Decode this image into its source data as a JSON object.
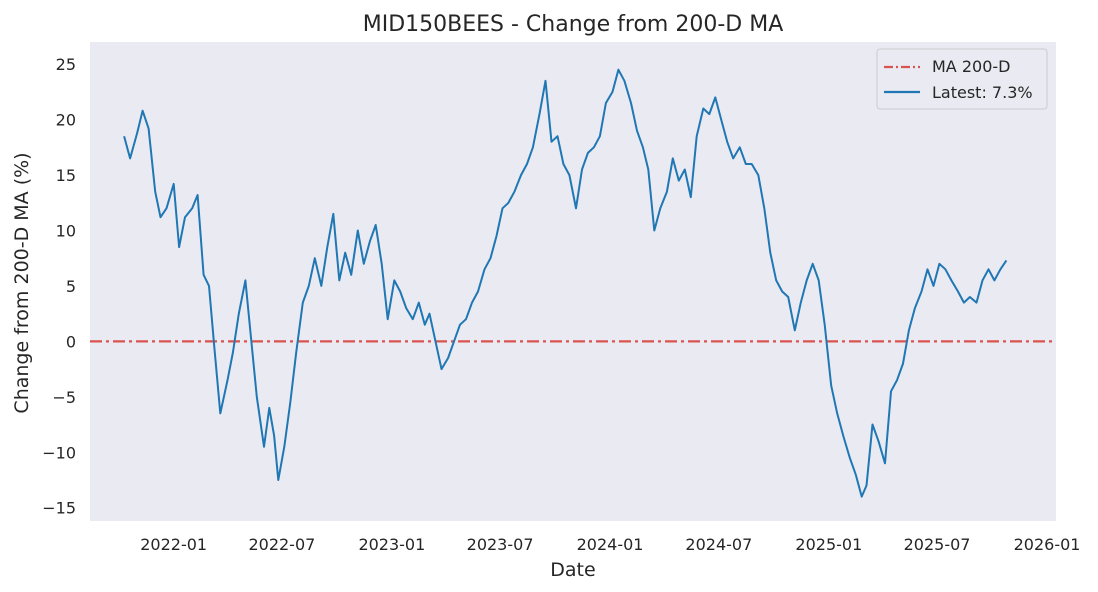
{
  "chart_data": {
    "type": "line",
    "title": "MID150BEES - Change from 200-D MA",
    "xlabel": "Date",
    "ylabel": "Change from 200-D MA (%)",
    "xlim": [
      "2021-08-14",
      "2026-01-16"
    ],
    "ylim": [
      -16.2,
      27.0
    ],
    "grid": false,
    "legend_position": "top-right",
    "x_ticks": [
      "2022-01",
      "2022-07",
      "2023-01",
      "2023-07",
      "2024-01",
      "2024-07",
      "2025-01",
      "2025-07",
      "2026-01"
    ],
    "y_ticks": [
      25,
      20,
      15,
      10,
      5,
      0,
      -5,
      -10,
      -15
    ],
    "reference_line": {
      "name": "MA 200-D",
      "y": 0,
      "color": "#d9534f",
      "style": "dashdot"
    },
    "series": [
      {
        "name": "Latest: 7.3%",
        "color": "#1f77b4",
        "x": [
          "2021-10-10",
          "2021-10-20",
          "2021-11-01",
          "2021-11-10",
          "2021-11-20",
          "2021-12-01",
          "2021-12-10",
          "2021-12-20",
          "2022-01-01",
          "2022-01-10",
          "2022-01-20",
          "2022-02-01",
          "2022-02-10",
          "2022-02-20",
          "2022-03-01",
          "2022-03-10",
          "2022-03-20",
          "2022-04-01",
          "2022-04-10",
          "2022-04-20",
          "2022-05-01",
          "2022-05-10",
          "2022-05-20",
          "2022-06-01",
          "2022-06-10",
          "2022-06-18",
          "2022-06-25",
          "2022-07-05",
          "2022-07-15",
          "2022-07-25",
          "2022-08-05",
          "2022-08-15",
          "2022-08-25",
          "2022-09-05",
          "2022-09-15",
          "2022-09-25",
          "2022-10-05",
          "2022-10-15",
          "2022-10-25",
          "2022-11-05",
          "2022-11-15",
          "2022-11-25",
          "2022-12-05",
          "2022-12-15",
          "2022-12-25",
          "2023-01-05",
          "2023-01-15",
          "2023-01-25",
          "2023-02-05",
          "2023-02-15",
          "2023-02-25",
          "2023-03-05",
          "2023-03-15",
          "2023-03-25",
          "2023-04-05",
          "2023-04-15",
          "2023-04-25",
          "2023-05-05",
          "2023-05-15",
          "2023-05-25",
          "2023-06-05",
          "2023-06-15",
          "2023-06-25",
          "2023-07-05",
          "2023-07-15",
          "2023-07-25",
          "2023-08-05",
          "2023-08-15",
          "2023-08-25",
          "2023-09-05",
          "2023-09-15",
          "2023-09-25",
          "2023-10-05",
          "2023-10-15",
          "2023-10-25",
          "2023-11-05",
          "2023-11-15",
          "2023-11-25",
          "2023-12-05",
          "2023-12-15",
          "2023-12-25",
          "2024-01-05",
          "2024-01-15",
          "2024-01-25",
          "2024-02-05",
          "2024-02-15",
          "2024-02-25",
          "2024-03-05",
          "2024-03-15",
          "2024-03-25",
          "2024-04-05",
          "2024-04-15",
          "2024-04-25",
          "2024-05-05",
          "2024-05-15",
          "2024-05-25",
          "2024-06-05",
          "2024-06-15",
          "2024-06-25",
          "2024-07-05",
          "2024-07-15",
          "2024-07-25",
          "2024-08-05",
          "2024-08-15",
          "2024-08-25",
          "2024-09-05",
          "2024-09-15",
          "2024-09-25",
          "2024-10-05",
          "2024-10-15",
          "2024-10-25",
          "2024-11-05",
          "2024-11-15",
          "2024-11-25",
          "2024-12-05",
          "2024-12-15",
          "2024-12-25",
          "2025-01-05",
          "2025-01-15",
          "2025-01-25",
          "2025-02-05",
          "2025-02-15",
          "2025-02-25",
          "2025-03-05",
          "2025-03-15",
          "2025-03-25",
          "2025-04-05",
          "2025-04-15",
          "2025-04-25",
          "2025-05-05",
          "2025-05-15",
          "2025-05-25",
          "2025-06-05",
          "2025-06-15",
          "2025-06-25",
          "2025-07-05",
          "2025-07-15",
          "2025-07-25",
          "2025-08-05",
          "2025-08-15",
          "2025-08-25",
          "2025-09-05",
          "2025-09-15",
          "2025-09-25",
          "2025-10-05",
          "2025-10-15",
          "2025-10-25"
        ],
        "values": [
          18.5,
          16.5,
          18.8,
          20.8,
          19.2,
          13.5,
          11.2,
          12.0,
          14.2,
          8.5,
          11.2,
          12.0,
          13.2,
          6.0,
          5.0,
          -0.5,
          -6.5,
          -3.5,
          -1.0,
          2.5,
          5.5,
          0.5,
          -5.0,
          -9.5,
          -6.0,
          -8.5,
          -12.5,
          -9.5,
          -5.5,
          -1.0,
          3.5,
          5.0,
          7.5,
          5.0,
          8.5,
          11.5,
          5.5,
          8.0,
          6.0,
          10.0,
          7.0,
          9.0,
          10.5,
          7.0,
          2.0,
          5.5,
          4.5,
          3.0,
          2.0,
          3.5,
          1.5,
          2.5,
          0.0,
          -2.5,
          -1.5,
          0.0,
          1.5,
          2.0,
          3.5,
          4.5,
          6.5,
          7.5,
          9.5,
          12.0,
          12.5,
          13.5,
          15.0,
          16.0,
          17.5,
          20.5,
          23.5,
          18.0,
          18.5,
          16.0,
          15.0,
          12.0,
          15.5,
          17.0,
          17.5,
          18.5,
          21.5,
          22.5,
          24.5,
          23.5,
          21.5,
          19.0,
          17.5,
          15.5,
          10.0,
          12.0,
          13.5,
          16.5,
          14.5,
          15.5,
          13.0,
          18.5,
          21.0,
          20.5,
          22.0,
          20.0,
          18.0,
          16.5,
          17.5,
          16.0,
          16.0,
          15.0,
          12.0,
          8.0,
          5.5,
          4.5,
          4.0,
          1.0,
          3.5,
          5.5,
          7.0,
          5.5,
          1.5,
          -4.0,
          -6.5,
          -8.5,
          -10.5,
          -12.0,
          -14.0,
          -13.0,
          -7.5,
          -9.0,
          -11.0,
          -4.5,
          -3.5,
          -2.0,
          1.0,
          3.0,
          4.5,
          6.5,
          5.0,
          7.0,
          6.5,
          5.5,
          4.5,
          3.5,
          4.0,
          3.5,
          5.5,
          6.5,
          5.5,
          6.5,
          7.3
        ]
      }
    ]
  }
}
